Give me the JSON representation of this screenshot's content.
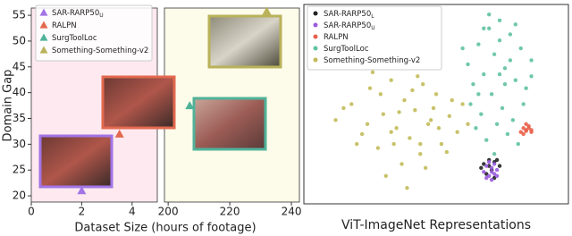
{
  "chart_data": [
    {
      "type": "scatter",
      "marker": "triangle",
      "x_label": "Dataset Size (hours of footage)",
      "y_label": "Domain Gap",
      "x_segments": [
        {
          "xlim": [
            0,
            5
          ],
          "xticks": [
            0,
            2,
            4
          ],
          "background": "#fde9ef"
        },
        {
          "xlim": [
            198.8,
            242.6
          ],
          "xticks": [
            200,
            220,
            240
          ],
          "background": "#fdfbe9"
        }
      ],
      "ylim": [
        18.8,
        56.4
      ],
      "yticks": [
        20,
        25,
        30,
        35,
        40,
        45,
        50,
        55
      ],
      "legend": "upper left",
      "series": [
        {
          "name": "SAR-RARP50",
          "name_subscript": "U",
          "color": "#a274e6",
          "x": [
            2
          ],
          "values": [
            21
          ]
        },
        {
          "name": "RALPN",
          "color": "#e2694f",
          "x": [
            3.5
          ],
          "values": [
            32
          ]
        },
        {
          "name": "SurgToolLoc",
          "color": "#4fb39a",
          "x": [
            207
          ],
          "values": [
            37.5
          ]
        },
        {
          "name": "Something-Something-v2",
          "color": "#b9b25a",
          "x": [
            232
          ],
          "values": [
            55.8
          ]
        }
      ]
    },
    {
      "type": "scatter",
      "marker": "circle",
      "x_label": "ViT-ImageNet Representations",
      "xlim": [
        0,
        100
      ],
      "ylim": [
        0,
        100
      ],
      "legend": "upper left",
      "series": [
        {
          "name": "SAR-RARP50",
          "name_subscript": "L",
          "color": "#222222",
          "x": [
            67,
            68,
            70,
            71,
            72,
            74,
            69,
            73,
            70,
            72
          ],
          "values": [
            18,
            20,
            22,
            17,
            21,
            19,
            15,
            22,
            19,
            13
          ]
        },
        {
          "name": "SAR-RARP50",
          "name_subscript": "U",
          "color": "#9a5cdd",
          "x": [
            68,
            69,
            70,
            71,
            72,
            73,
            69,
            70,
            71,
            72,
            73,
            71
          ],
          "values": [
            16,
            19,
            14,
            18,
            15,
            17,
            13,
            21,
            16,
            20,
            14,
            12
          ]
        },
        {
          "name": "RALPN",
          "color": "#e8604a",
          "x": [
            82,
            83,
            84,
            85,
            86,
            83,
            84,
            85,
            86,
            84
          ],
          "values": [
            36,
            38,
            37,
            39,
            36,
            35,
            40,
            38,
            37,
            36.5
          ]
        },
        {
          "name": "SurgToolLoc",
          "color": "#5fc2a0",
          "x": [
            62,
            66,
            70,
            74,
            78,
            82,
            86,
            64,
            68,
            72,
            76,
            80,
            84,
            63,
            67,
            71,
            75,
            79,
            83,
            65,
            69,
            73,
            77,
            81,
            70,
            74,
            78,
            72,
            76,
            68,
            80,
            66,
            74,
            60,
            86
          ],
          "values": [
            70,
            80,
            88,
            92,
            85,
            78,
            72,
            60,
            65,
            75,
            68,
            62,
            58,
            50,
            45,
            55,
            48,
            42,
            50,
            38,
            32,
            40,
            35,
            30,
            95,
            82,
            72,
            25,
            60,
            88,
            90,
            55,
            65,
            78,
            64
          ]
        },
        {
          "name": "Something-Something-v2",
          "color": "#c2bb5a",
          "x": [
            12,
            18,
            22,
            25,
            28,
            30,
            33,
            35,
            37,
            38,
            40,
            42,
            44,
            45,
            47,
            50,
            52,
            55,
            58,
            60,
            62,
            20,
            26,
            31,
            36,
            41,
            46,
            51,
            56,
            15,
            24,
            34,
            43,
            49,
            54,
            29,
            39,
            48,
            33,
            44
          ],
          "values": [
            42,
            50,
            35,
            58,
            28,
            45,
            62,
            38,
            20,
            52,
            33,
            47,
            25,
            60,
            40,
            55,
            30,
            44,
            36,
            50,
            40,
            30,
            66,
            14,
            46,
            57,
            18,
            38,
            52,
            48,
            40,
            30,
            64,
            48,
            26,
            55,
            8,
            42,
            36,
            30
          ]
        }
      ]
    }
  ]
}
